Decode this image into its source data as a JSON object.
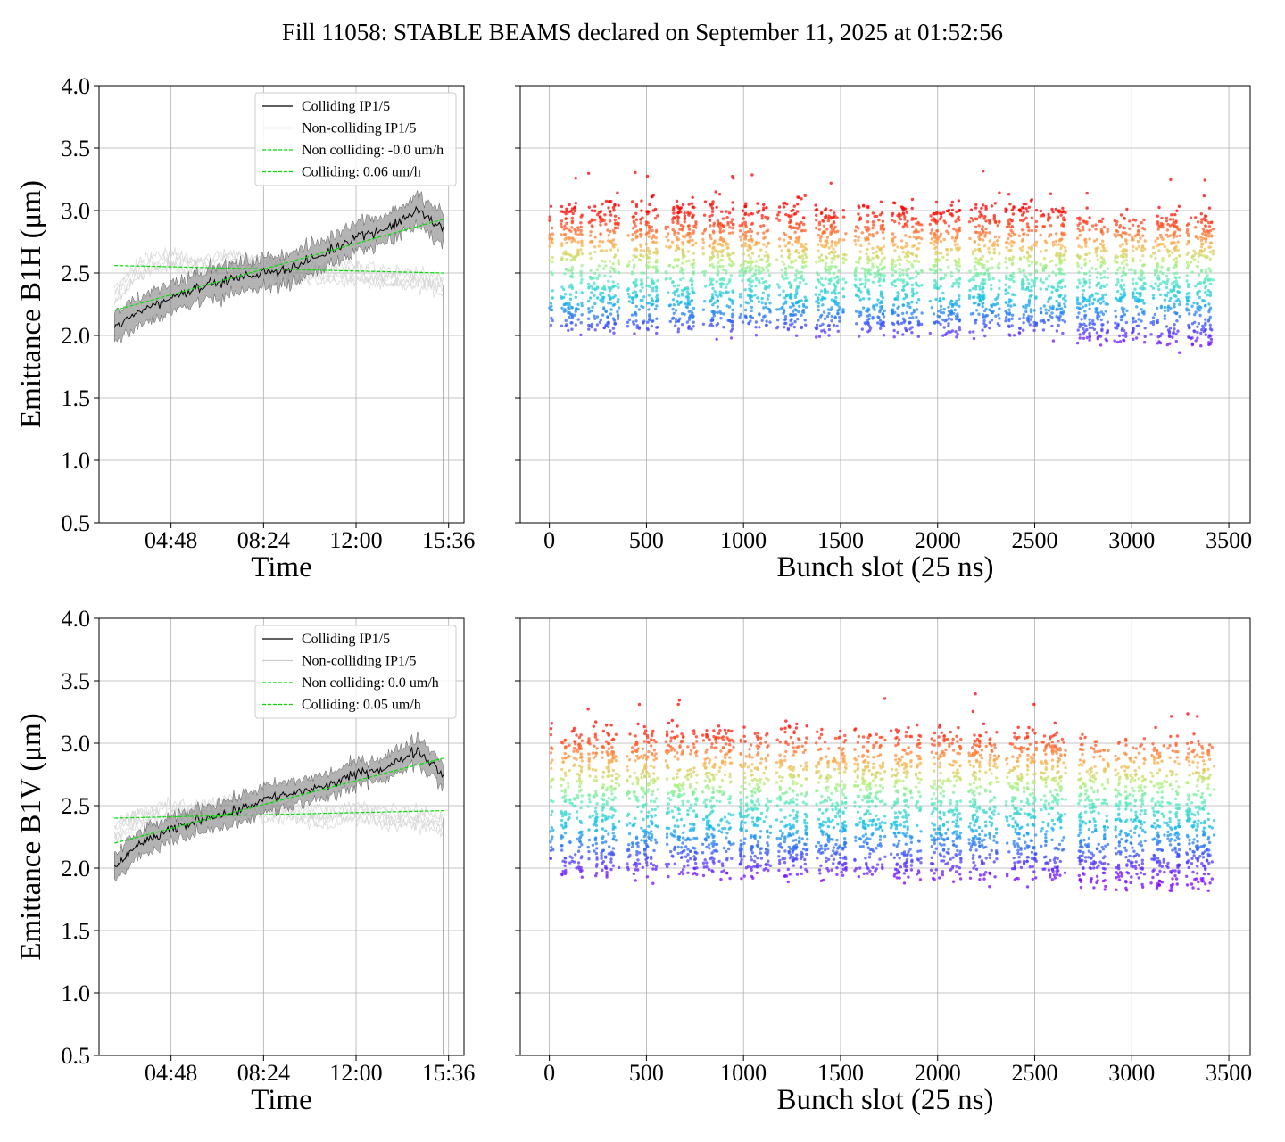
{
  "figure": {
    "title": "Fill 11058: STABLE BEAMS declared on September 11, 2025 at 01:52:56"
  },
  "chart_data": [
    {
      "id": "b1h-time",
      "type": "line",
      "xlabel": "Time",
      "ylabel": "Emittance B1H (μm)",
      "ylim": [
        0.5,
        4.0
      ],
      "yticks": [
        "0.5",
        "1.0",
        "1.5",
        "2.0",
        "2.5",
        "3.0",
        "3.5",
        "4.0"
      ],
      "xticks": [
        "04:48",
        "08:24",
        "12:00",
        "15:36"
      ],
      "xlim": [
        "02:00",
        "16:12"
      ],
      "grid": true,
      "legend_position": "top-right",
      "legend": [
        {
          "label": "Colliding IP1/5",
          "color": "#000000",
          "style": "solid"
        },
        {
          "label": "Non-colliding IP1/5",
          "color": "#cccccc",
          "style": "solid"
        },
        {
          "label": "Non colliding: -0.0 um/h",
          "color": "#00e000",
          "style": "dashed"
        },
        {
          "label": "Colliding: 0.06 um/h",
          "color": "#00e000",
          "style": "dashed"
        }
      ],
      "series": [
        {
          "name": "Colliding IP1/5",
          "x": [
            "02:36",
            "03:36",
            "04:48",
            "06:00",
            "07:12",
            "08:24",
            "09:36",
            "10:48",
            "12:00",
            "13:12",
            "14:24",
            "15:24"
          ],
          "y": [
            2.05,
            2.2,
            2.3,
            2.4,
            2.45,
            2.5,
            2.55,
            2.65,
            2.8,
            2.85,
            3.0,
            2.85
          ],
          "band": 0.12
        },
        {
          "name": "Non-colliding IP1/5",
          "x": [
            "02:36",
            "03:36",
            "04:48",
            "06:00",
            "07:12",
            "08:24",
            "09:36",
            "10:48",
            "12:00",
            "13:12",
            "14:24",
            "15:24"
          ],
          "y": [
            2.3,
            2.55,
            2.6,
            2.55,
            2.6,
            2.55,
            2.5,
            2.5,
            2.5,
            2.45,
            2.45,
            2.4
          ]
        },
        {
          "name": "Non colliding: -0.0 um/h",
          "x": [
            "02:36",
            "15:24"
          ],
          "y": [
            2.56,
            2.5
          ]
        },
        {
          "name": "Colliding: 0.06 um/h",
          "x": [
            "02:36",
            "15:24"
          ],
          "y": [
            2.2,
            2.93
          ]
        }
      ]
    },
    {
      "id": "b1h-bunch",
      "type": "scatter",
      "xlabel": "Bunch slot (25 ns)",
      "ylim": [
        0.5,
        4.0
      ],
      "xlim": [
        -150,
        3610
      ],
      "xticks": [
        "0",
        "500",
        "1000",
        "1500",
        "2000",
        "2500",
        "3000",
        "3500"
      ],
      "grid": true,
      "color_scale": "rainbow",
      "trains": [
        {
          "start": 0,
          "end": 20
        },
        {
          "start": 60,
          "end": 175
        },
        {
          "start": 200,
          "end": 360
        },
        {
          "start": 400,
          "end": 560
        },
        {
          "start": 600,
          "end": 760
        },
        {
          "start": 790,
          "end": 950
        },
        {
          "start": 980,
          "end": 1140
        },
        {
          "start": 1170,
          "end": 1330
        },
        {
          "start": 1370,
          "end": 1530
        },
        {
          "start": 1570,
          "end": 1730
        },
        {
          "start": 1760,
          "end": 1920
        },
        {
          "start": 1960,
          "end": 2120
        },
        {
          "start": 2160,
          "end": 2320
        },
        {
          "start": 2350,
          "end": 2510
        },
        {
          "start": 2530,
          "end": 2660
        },
        {
          "start": 2720,
          "end": 2880
        },
        {
          "start": 2910,
          "end": 3070
        },
        {
          "start": 3100,
          "end": 3250
        },
        {
          "start": 3280,
          "end": 3430
        }
      ],
      "y_range_typical": [
        1.9,
        3.2
      ]
    },
    {
      "id": "b1v-time",
      "type": "line",
      "xlabel": "Time",
      "ylabel": "Emittance B1V (μm)",
      "ylim": [
        0.5,
        4.0
      ],
      "yticks": [
        "0.5",
        "1.0",
        "1.5",
        "2.0",
        "2.5",
        "3.0",
        "3.5",
        "4.0"
      ],
      "xticks": [
        "04:48",
        "08:24",
        "12:00",
        "15:36"
      ],
      "xlim": [
        "02:00",
        "16:12"
      ],
      "grid": true,
      "legend_position": "top-right",
      "legend": [
        {
          "label": "Colliding IP1/5",
          "color": "#000000",
          "style": "solid"
        },
        {
          "label": "Non-colliding IP1/5",
          "color": "#cccccc",
          "style": "solid"
        },
        {
          "label": "Non colliding: 0.0 um/h",
          "color": "#00e000",
          "style": "dashed"
        },
        {
          "label": "Colliding: 0.05 um/h",
          "color": "#00e000",
          "style": "dashed"
        }
      ],
      "series": [
        {
          "name": "Colliding IP1/5",
          "x": [
            "02:36",
            "03:36",
            "04:48",
            "06:00",
            "07:12",
            "08:24",
            "09:36",
            "10:48",
            "12:00",
            "13:12",
            "14:24",
            "15:24"
          ],
          "y": [
            2.0,
            2.2,
            2.3,
            2.4,
            2.45,
            2.55,
            2.6,
            2.65,
            2.75,
            2.8,
            2.95,
            2.75
          ],
          "band": 0.1
        },
        {
          "name": "Non-colliding IP1/5",
          "x": [
            "02:36",
            "03:36",
            "04:48",
            "06:00",
            "07:12",
            "08:24",
            "09:36",
            "10:48",
            "12:00",
            "13:12",
            "14:24",
            "15:24"
          ],
          "y": [
            2.3,
            2.4,
            2.45,
            2.45,
            2.5,
            2.45,
            2.45,
            2.4,
            2.45,
            2.4,
            2.4,
            2.35
          ]
        },
        {
          "name": "Non colliding: 0.0 um/h",
          "x": [
            "02:36",
            "15:24"
          ],
          "y": [
            2.4,
            2.46
          ]
        },
        {
          "name": "Colliding: 0.05 um/h",
          "x": [
            "02:36",
            "15:24"
          ],
          "y": [
            2.2,
            2.88
          ]
        }
      ]
    },
    {
      "id": "b1v-bunch",
      "type": "scatter",
      "xlabel": "Bunch slot (25 ns)",
      "ylim": [
        0.5,
        4.0
      ],
      "xlim": [
        -150,
        3610
      ],
      "xticks": [
        "0",
        "500",
        "1000",
        "1500",
        "2000",
        "2500",
        "3000",
        "3500"
      ],
      "grid": true,
      "color_scale": "rainbow",
      "trains": [
        {
          "start": 0,
          "end": 20
        },
        {
          "start": 60,
          "end": 175
        },
        {
          "start": 200,
          "end": 360
        },
        {
          "start": 400,
          "end": 560
        },
        {
          "start": 600,
          "end": 760
        },
        {
          "start": 790,
          "end": 950
        },
        {
          "start": 980,
          "end": 1140
        },
        {
          "start": 1170,
          "end": 1330
        },
        {
          "start": 1370,
          "end": 1530
        },
        {
          "start": 1570,
          "end": 1730
        },
        {
          "start": 1760,
          "end": 1920
        },
        {
          "start": 1960,
          "end": 2120
        },
        {
          "start": 2160,
          "end": 2320
        },
        {
          "start": 2350,
          "end": 2510
        },
        {
          "start": 2530,
          "end": 2660
        },
        {
          "start": 2720,
          "end": 2880
        },
        {
          "start": 2910,
          "end": 3070
        },
        {
          "start": 3100,
          "end": 3250
        },
        {
          "start": 3280,
          "end": 3430
        }
      ],
      "y_range_typical": [
        1.8,
        3.3
      ]
    }
  ]
}
